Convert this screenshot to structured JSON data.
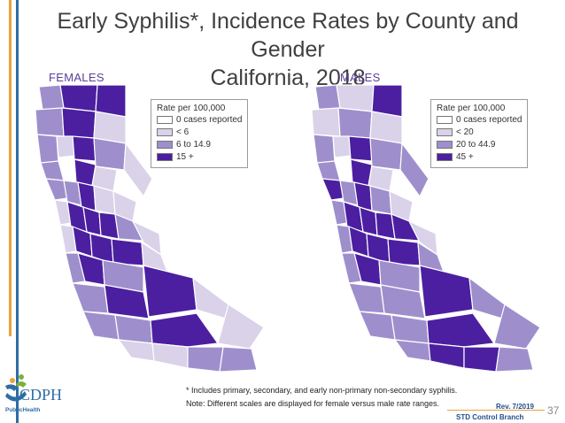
{
  "slide": {
    "title_line1": "Early Syphilis*, Incidence Rates by County and Gender",
    "title_line2": "California, 2018",
    "page_number": "37",
    "revision": "Rev. 7/2019",
    "branch": "STD Control Branch",
    "logo_text": "CDPH",
    "logo_subtext": "PublicHealth"
  },
  "footnotes": {
    "asterisk": "* Includes primary, secondary, and early non-primary non-secondary syphilis.",
    "note": "Note:  Different scales are displayed for female versus male rate ranges."
  },
  "colors": {
    "zero": "#ffffff",
    "low": "#D9D2E9",
    "mid": "#9E8FCC",
    "high": "#4B1FA0",
    "accent_orange": "#E8A33D",
    "accent_blue": "#2E6DA4"
  },
  "maps": [
    {
      "label": "FEMALES",
      "legend": {
        "title": "Rate per 100,000",
        "items": [
          {
            "label": "0 cases reported",
            "level": "zero"
          },
          {
            "label": "< 6",
            "level": "low"
          },
          {
            "label": "6 to 14.9",
            "level": "mid"
          },
          {
            "label": "15 +",
            "level": "high"
          }
        ]
      }
    },
    {
      "label": "MALES",
      "legend": {
        "title": "Rate per 100,000",
        "items": [
          {
            "label": "0 cases reported",
            "level": "zero"
          },
          {
            "label": "< 20",
            "level": "low"
          },
          {
            "label": "20 to 44.9",
            "level": "mid"
          },
          {
            "label": "45 +",
            "level": "high"
          }
        ]
      }
    }
  ]
}
